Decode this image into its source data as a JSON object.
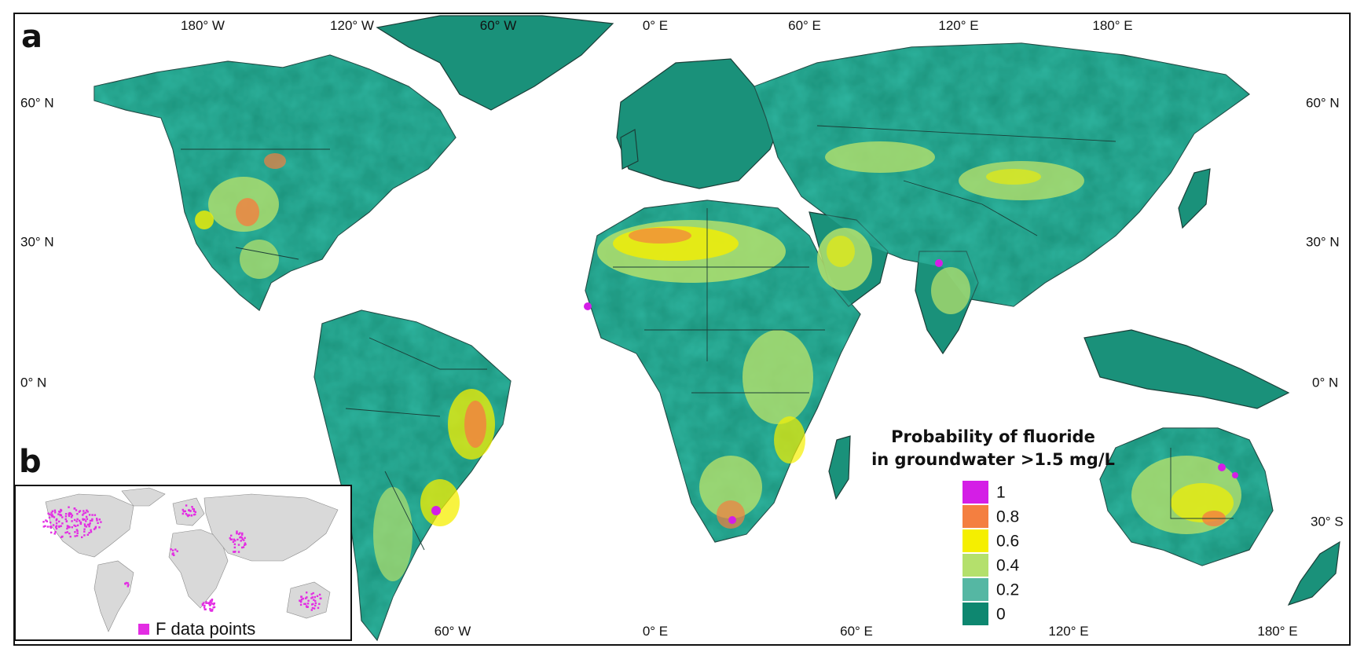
{
  "panels": {
    "main_label": "a",
    "inset_label": "b"
  },
  "axes": {
    "top": [
      "180° W",
      "120° W",
      "60° W",
      "0° E",
      "60° E",
      "120° E",
      "180° E"
    ],
    "bottom": [
      "60° W",
      "0° E",
      "60° E",
      "120° E",
      "180° E"
    ],
    "left": [
      "60° N",
      "30° N",
      "0° N"
    ],
    "right": [
      "60° N",
      "30° N",
      "0° N",
      "30° S"
    ]
  },
  "legend": {
    "title_line1": "Probability of fluoride",
    "title_line2": "in groundwater >1.5 mg/L",
    "items": [
      {
        "label": "1",
        "color": "#d41ee6"
      },
      {
        "label": "0.8",
        "color": "#f47f40"
      },
      {
        "label": "0.6",
        "color": "#f5ef00"
      },
      {
        "label": "0.4",
        "color": "#b4e06c"
      },
      {
        "label": "0.2",
        "color": "#55b7a3"
      },
      {
        "label": "0",
        "color": "#0e8770"
      }
    ]
  },
  "inset": {
    "legend_label": "F data points",
    "point_color": "#e32de3",
    "land_color": "#d9d9d9"
  },
  "colors": {
    "land_low": "#1a917a",
    "land_mid": "#48ad9a",
    "ocean": "#ffffff",
    "border": "#1b3f38"
  }
}
